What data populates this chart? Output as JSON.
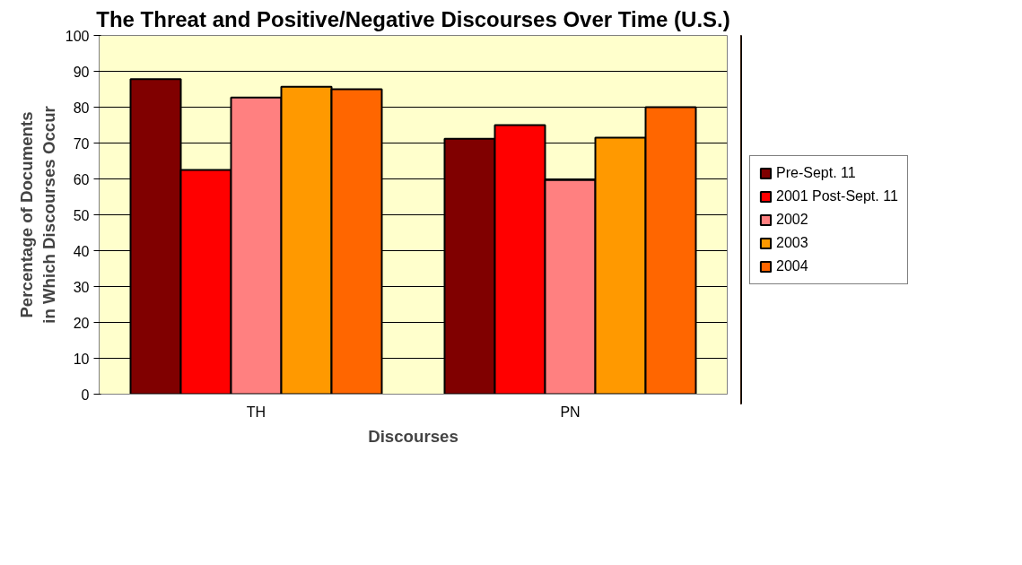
{
  "chart_data": {
    "type": "bar",
    "title": "The Threat and Positive/Negative Discourses Over Time (U.S.)",
    "xlabel": "Discourses",
    "ylabel": "Percentage of Documents in Which Discourses Occur",
    "categories": [
      "TH",
      "PN"
    ],
    "series": [
      {
        "name": "Pre-Sept. 11",
        "color": "#800000",
        "values": [
          87.8,
          71.2
        ]
      },
      {
        "name": "2001 Post-Sept. 11",
        "color": "#ff0000",
        "values": [
          62.5,
          75.0
        ]
      },
      {
        "name": "2002",
        "color": "#ff8080",
        "values": [
          82.7,
          59.7
        ]
      },
      {
        "name": "2003",
        "color": "#ff9900",
        "values": [
          85.7,
          71.5
        ]
      },
      {
        "name": "2004",
        "color": "#ff6600",
        "values": [
          85.0,
          80.0
        ]
      }
    ],
    "ylim": [
      0,
      100
    ],
    "yticks": [
      0,
      10,
      20,
      30,
      40,
      50,
      60,
      70,
      80,
      90,
      100
    ],
    "grid": "y",
    "legend": "right"
  }
}
